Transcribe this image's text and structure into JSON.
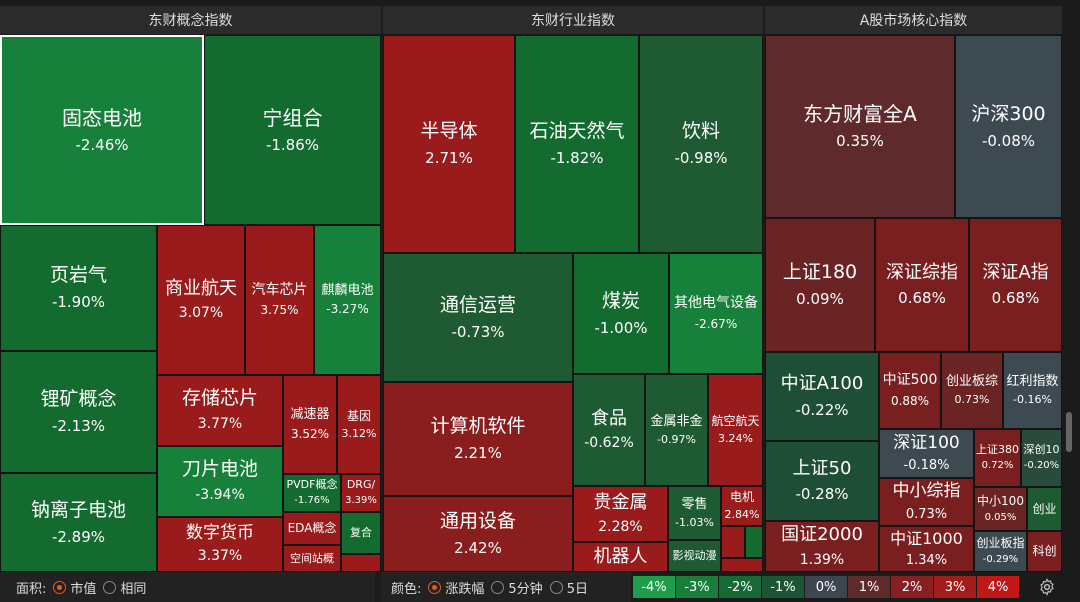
{
  "headers": {
    "concept": "东财概念指数",
    "industry": "东财行业指数",
    "core": "A股市场核心指数"
  },
  "tiles": {
    "gutai": {
      "name": "固态电池",
      "pct": "-2.46%"
    },
    "ningzuhe": {
      "name": "宁组合",
      "pct": "-1.86%"
    },
    "yeyanqi": {
      "name": "页岩气",
      "pct": "-1.90%"
    },
    "shangyehangtian": {
      "name": "商业航天",
      "pct": "3.07%"
    },
    "qichexinpian": {
      "name": "汽车芯片",
      "pct": "3.75%"
    },
    "qilin": {
      "name": "麒麟电池",
      "pct": "-3.27%"
    },
    "likuang": {
      "name": "锂矿概念",
      "pct": "-2.13%"
    },
    "cunchu": {
      "name": "存储芯片",
      "pct": "3.77%"
    },
    "jiansuqi": {
      "name": "减速器",
      "pct": "3.52%"
    },
    "jiyin": {
      "name": "基因",
      "pct": "3.12%"
    },
    "daopian": {
      "name": "刀片电池",
      "pct": "-3.94%"
    },
    "pvdf": {
      "name": "PVDF概念",
      "pct": "-1.76%"
    },
    "drg": {
      "name": "DRG/",
      "pct": "3.39%"
    },
    "nalizi": {
      "name": "钠离子电池",
      "pct": "-2.89%"
    },
    "shuzi": {
      "name": "数字货币",
      "pct": "3.37%"
    },
    "eda": {
      "name": "EDA概念",
      "pct": ""
    },
    "fuhe": {
      "name": "复合",
      "pct": ""
    },
    "kongjian": {
      "name": "空间站概",
      "pct": ""
    },
    "bandaoti": {
      "name": "半导体",
      "pct": "2.71%"
    },
    "shiyou": {
      "name": "石油天然气",
      "pct": "-1.82%"
    },
    "yinliao": {
      "name": "饮料",
      "pct": "-0.98%"
    },
    "tongxin": {
      "name": "通信运营",
      "pct": "-0.73%"
    },
    "meitan": {
      "name": "煤炭",
      "pct": "-1.00%"
    },
    "qitadianqi": {
      "name": "其他电气设备",
      "pct": "-2.67%"
    },
    "jisuanji": {
      "name": "计算机软件",
      "pct": "2.21%"
    },
    "shipin": {
      "name": "食品",
      "pct": "-0.62%"
    },
    "jinshu": {
      "name": "金属非金",
      "pct": "-0.97%"
    },
    "hangkong": {
      "name": "航空航天",
      "pct": "3.24%"
    },
    "tongyong": {
      "name": "通用设备",
      "pct": "2.42%"
    },
    "guijinshu": {
      "name": "贵金属",
      "pct": "2.28%"
    },
    "lingshou": {
      "name": "零售",
      "pct": "-1.03%"
    },
    "dianji": {
      "name": "电机",
      "pct": "2.84%"
    },
    "jiqiren": {
      "name": "机器人",
      "pct": ""
    },
    "yingshi": {
      "name": "影视动漫",
      "pct": ""
    },
    "dongfang": {
      "name": "东方财富全A",
      "pct": "0.35%"
    },
    "hushen300": {
      "name": "沪深300",
      "pct": "-0.08%"
    },
    "sz180": {
      "name": "上证180",
      "pct": "0.09%"
    },
    "szzz": {
      "name": "深证综指",
      "pct": "0.68%"
    },
    "sza": {
      "name": "深证A指",
      "pct": "0.68%"
    },
    "zza100": {
      "name": "中证A100",
      "pct": "-0.22%"
    },
    "zz500": {
      "name": "中证500",
      "pct": "0.88%"
    },
    "cybz": {
      "name": "创业板综",
      "pct": "0.73%"
    },
    "hongli": {
      "name": "红利指数",
      "pct": "-0.16%"
    },
    "sz100": {
      "name": "深证100",
      "pct": "-0.18%"
    },
    "sz380": {
      "name": "上证380",
      "pct": "0.72%"
    },
    "sc10": {
      "name": "深创10",
      "pct": "-0.20%"
    },
    "sz50": {
      "name": "上证50",
      "pct": "-0.28%"
    },
    "zxzz": {
      "name": "中小综指",
      "pct": "0.73%"
    },
    "zx100": {
      "name": "中小100",
      "pct": "0.05%"
    },
    "chuangye": {
      "name": "创业",
      "pct": ""
    },
    "gz2000": {
      "name": "国证2000",
      "pct": "1.39%"
    },
    "zz1000": {
      "name": "中证1000",
      "pct": "1.34%"
    },
    "cybzhi": {
      "name": "创业板指",
      "pct": "-0.29%"
    },
    "kechuang": {
      "name": "科创",
      "pct": ""
    }
  },
  "bottom": {
    "area_label": "面积:",
    "area_opt1": "市值",
    "area_opt2": "相同",
    "color_label": "颜色:",
    "color_opt1": "涨跌幅",
    "color_opt2": "5分钟",
    "color_opt3": "5日",
    "legend": [
      "-4%",
      "-3%",
      "-2%",
      "-1%",
      "0%",
      "1%",
      "2%",
      "3%",
      "4%"
    ],
    "legend_colors": [
      "#1f9d4a",
      "#187f3b",
      "#176a33",
      "#1d5434",
      "#3c4650",
      "#5e2a2c",
      "#862022",
      "#a31c1c",
      "#c01818"
    ]
  },
  "icons": {
    "settings": "gear-icon"
  }
}
